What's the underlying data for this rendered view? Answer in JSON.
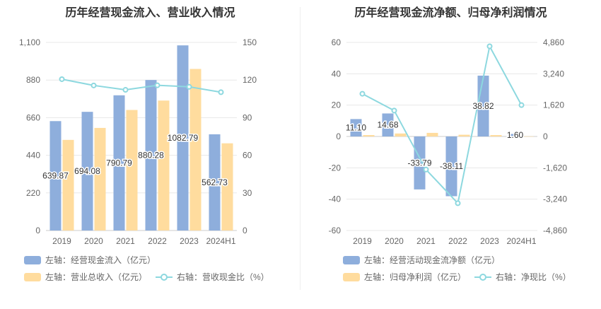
{
  "colors": {
    "bar_primary": "#8eaedc",
    "bar_secondary": "#ffdc9e",
    "line": "#8dd8df",
    "grid": "#e8e8e8",
    "axis_text": "#666666"
  },
  "chart_data": [
    {
      "type": "bar",
      "title": "历年经营现金流入、营业收入情况",
      "categories": [
        "2019",
        "2020",
        "2021",
        "2022",
        "2023",
        "2024H1"
      ],
      "y_left": {
        "ticks": [
          "0",
          "220",
          "440",
          "660",
          "880",
          "1,100"
        ],
        "range": [
          0,
          1100
        ]
      },
      "y_right": {
        "ticks": [
          "0",
          "30",
          "60",
          "90",
          "120",
          "150"
        ],
        "range": [
          0,
          150
        ]
      },
      "series": [
        {
          "name": "左轴：经营现金流入（亿元）",
          "axis": "left",
          "kind": "bar",
          "color": "#8eaedc",
          "values": [
            639.87,
            694.08,
            790.79,
            880.28,
            1082.79,
            562.73
          ],
          "labels": [
            "639.87",
            "694.08",
            "790.79",
            "880.28",
            "1082.79",
            "562.73"
          ]
        },
        {
          "name": "左轴：营业总收入（亿元）",
          "axis": "left",
          "kind": "bar",
          "color": "#ffdc9e",
          "values": [
            530,
            600,
            705,
            760,
            945,
            510
          ]
        },
        {
          "name": "右轴：营收现金比（%）",
          "axis": "right",
          "kind": "line",
          "color": "#8dd8df",
          "values": [
            120.7,
            115.7,
            112.2,
            115.8,
            114.6,
            110.3
          ]
        }
      ]
    },
    {
      "type": "bar",
      "title": "历年经营现金流净额、归母净利润情况",
      "categories": [
        "2019",
        "2020",
        "2021",
        "2022",
        "2023",
        "2024H1"
      ],
      "y_left": {
        "ticks": [
          "-60",
          "-40",
          "-20",
          "0",
          "20",
          "40",
          "60"
        ],
        "range": [
          -60,
          60
        ]
      },
      "y_right": {
        "ticks": [
          "-4,860",
          "-3,240",
          "-1,620",
          "0",
          "1,620",
          "3,240",
          "4,860"
        ],
        "range": [
          -4860,
          4860
        ]
      },
      "series": [
        {
          "name": "左轴：经营活动现金流净额（亿元）",
          "axis": "left",
          "kind": "bar",
          "color": "#8eaedc",
          "values": [
            11.1,
            14.68,
            -33.79,
            -38.11,
            38.82,
            1.6
          ],
          "labels": [
            "11.10",
            "14.68",
            "-33.79",
            "-38.11",
            "38.82",
            "1.60"
          ]
        },
        {
          "name": "左轴：归母净利润（亿元）",
          "axis": "left",
          "kind": "bar",
          "color": "#ffdc9e",
          "values": [
            0.9,
            1.9,
            2.3,
            1.1,
            0.9,
            0.1
          ]
        },
        {
          "name": "右轴：净现比（%）",
          "axis": "right",
          "kind": "line",
          "color": "#8dd8df",
          "values": [
            2207,
            1340,
            -1710,
            -3450,
            4660,
            1620
          ]
        }
      ]
    }
  ]
}
